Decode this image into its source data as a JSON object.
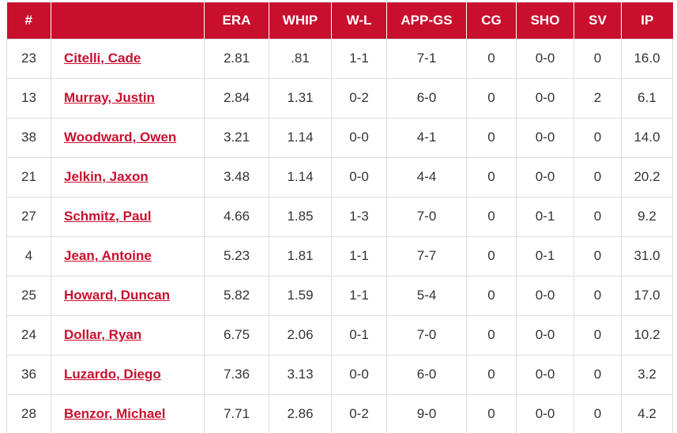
{
  "colors": {
    "header_bg": "#C8102E",
    "header_text": "#FFFFFF",
    "link": "#C8102E",
    "body_text": "#333333",
    "border": "#DDDDDD"
  },
  "table": {
    "columns": [
      {
        "key": "number",
        "label": "#"
      },
      {
        "key": "name",
        "label": ""
      },
      {
        "key": "era",
        "label": "ERA"
      },
      {
        "key": "whip",
        "label": "WHIP"
      },
      {
        "key": "wl",
        "label": "W-L"
      },
      {
        "key": "appgs",
        "label": "APP-GS"
      },
      {
        "key": "cg",
        "label": "CG"
      },
      {
        "key": "sho",
        "label": "SHO"
      },
      {
        "key": "sv",
        "label": "SV"
      },
      {
        "key": "ip",
        "label": "IP"
      }
    ],
    "rows": [
      {
        "number": "23",
        "name": "Citelli, Cade",
        "era": "2.81",
        "whip": ".81",
        "wl": "1-1",
        "appgs": "7-1",
        "cg": "0",
        "sho": "0-0",
        "sv": "0",
        "ip": "16.0"
      },
      {
        "number": "13",
        "name": "Murray, Justin",
        "era": "2.84",
        "whip": "1.31",
        "wl": "0-2",
        "appgs": "6-0",
        "cg": "0",
        "sho": "0-0",
        "sv": "2",
        "ip": "6.1"
      },
      {
        "number": "38",
        "name": "Woodward, Owen",
        "era": "3.21",
        "whip": "1.14",
        "wl": "0-0",
        "appgs": "4-1",
        "cg": "0",
        "sho": "0-0",
        "sv": "0",
        "ip": "14.0"
      },
      {
        "number": "21",
        "name": "Jelkin, Jaxon",
        "era": "3.48",
        "whip": "1.14",
        "wl": "0-0",
        "appgs": "4-4",
        "cg": "0",
        "sho": "0-0",
        "sv": "0",
        "ip": "20.2"
      },
      {
        "number": "27",
        "name": "Schmitz, Paul",
        "era": "4.66",
        "whip": "1.85",
        "wl": "1-3",
        "appgs": "7-0",
        "cg": "0",
        "sho": "0-1",
        "sv": "0",
        "ip": "9.2"
      },
      {
        "number": "4",
        "name": "Jean, Antoine",
        "era": "5.23",
        "whip": "1.81",
        "wl": "1-1",
        "appgs": "7-7",
        "cg": "0",
        "sho": "0-1",
        "sv": "0",
        "ip": "31.0"
      },
      {
        "number": "25",
        "name": "Howard, Duncan",
        "era": "5.82",
        "whip": "1.59",
        "wl": "1-1",
        "appgs": "5-4",
        "cg": "0",
        "sho": "0-0",
        "sv": "0",
        "ip": "17.0"
      },
      {
        "number": "24",
        "name": "Dollar, Ryan",
        "era": "6.75",
        "whip": "2.06",
        "wl": "0-1",
        "appgs": "7-0",
        "cg": "0",
        "sho": "0-0",
        "sv": "0",
        "ip": "10.2"
      },
      {
        "number": "36",
        "name": "Luzardo, Diego",
        "era": "7.36",
        "whip": "3.13",
        "wl": "0-0",
        "appgs": "6-0",
        "cg": "0",
        "sho": "0-0",
        "sv": "0",
        "ip": "3.2"
      },
      {
        "number": "28",
        "name": "Benzor, Michael",
        "era": "7.71",
        "whip": "2.86",
        "wl": "0-2",
        "appgs": "9-0",
        "cg": "0",
        "sho": "0-0",
        "sv": "0",
        "ip": "4.2"
      }
    ]
  }
}
